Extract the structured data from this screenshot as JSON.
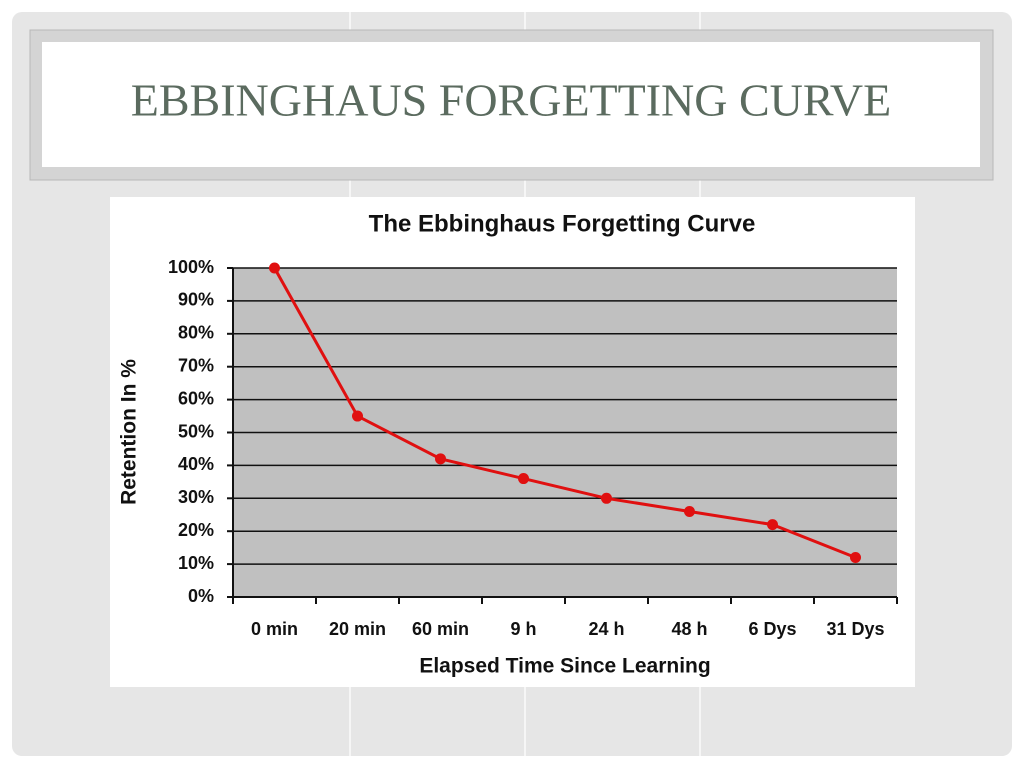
{
  "slide_title": "EBBINGHAUS FORGETTING CURVE",
  "chart_data": {
    "type": "line",
    "title": "The Ebbinghaus Forgetting Curve",
    "x_label": "Elapsed Time Since Learning",
    "y_label": "Retention In %",
    "categories": [
      "0 min",
      "20 min",
      "60 min",
      "9 h",
      "24 h",
      "48 h",
      "6 Dys",
      "31 Dys"
    ],
    "values": [
      100,
      55,
      42,
      36,
      30,
      26,
      22,
      12
    ],
    "color": "#e01010",
    "ylim": [
      0,
      100
    ],
    "yticks": [
      {
        "value": 0,
        "label": "0%"
      },
      {
        "value": 10,
        "label": "10%"
      },
      {
        "value": 20,
        "label": "20%"
      },
      {
        "value": 30,
        "label": "30%"
      },
      {
        "value": 40,
        "label": "40%"
      },
      {
        "value": 50,
        "label": "50%"
      },
      {
        "value": 60,
        "label": "60%"
      },
      {
        "value": 70,
        "label": "70%"
      },
      {
        "value": 80,
        "label": "80%"
      },
      {
        "value": 90,
        "label": "90%"
      },
      {
        "value": 100,
        "label": "100%"
      }
    ],
    "grid": true
  }
}
